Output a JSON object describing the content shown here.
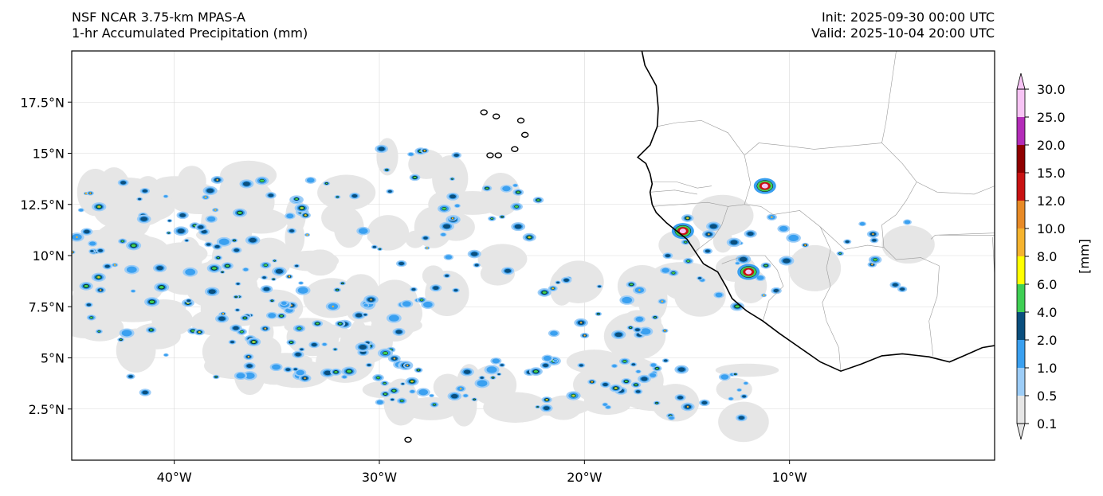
{
  "header": {
    "model": "NSF NCAR 3.75-km MPAS-A",
    "field": "1-hr Accumulated Precipitation (mm)",
    "init": "Init: 2025-09-30 00:00 UTC",
    "valid": "Valid: 2025-10-04 20:00 UTC"
  },
  "map": {
    "lon_range": [
      -45,
      0
    ],
    "lat_range": [
      0,
      20
    ],
    "lat_ticks": [
      {
        "value": 2.5,
        "label": "2.5°N"
      },
      {
        "value": 5,
        "label": "5°N"
      },
      {
        "value": 7.5,
        "label": "7.5°N"
      },
      {
        "value": 10,
        "label": "10°N"
      },
      {
        "value": 12.5,
        "label": "12.5°N"
      },
      {
        "value": 15,
        "label": "15°N"
      },
      {
        "value": 17.5,
        "label": "17.5°N"
      }
    ],
    "lon_ticks": [
      {
        "value": -40,
        "label": "40°W"
      },
      {
        "value": -30,
        "label": "30°W"
      },
      {
        "value": -20,
        "label": "20°W"
      },
      {
        "value": -10,
        "label": "10°W"
      }
    ],
    "gridlines": true
  },
  "colorbar": {
    "units_label": "[mm]",
    "levels": [
      "0.1",
      "0.5",
      "1.0",
      "2.0",
      "4.0",
      "6.0",
      "8.0",
      "10.0",
      "12.0",
      "15.0",
      "20.0",
      "25.0",
      "30.0"
    ],
    "colors": [
      "#e6e6e6",
      "#9dcdf7",
      "#3aa0f0",
      "#0a4f7e",
      "#3fcf54",
      "#ffff00",
      "#f5b32e",
      "#e88a26",
      "#c81212",
      "#8f0000",
      "#b32cb8",
      "#f7c4f5"
    ],
    "extend": "both"
  },
  "colors": {
    "coastline": "#000000",
    "borders": "#9a9a9a",
    "grid": "#d9d9d9"
  }
}
